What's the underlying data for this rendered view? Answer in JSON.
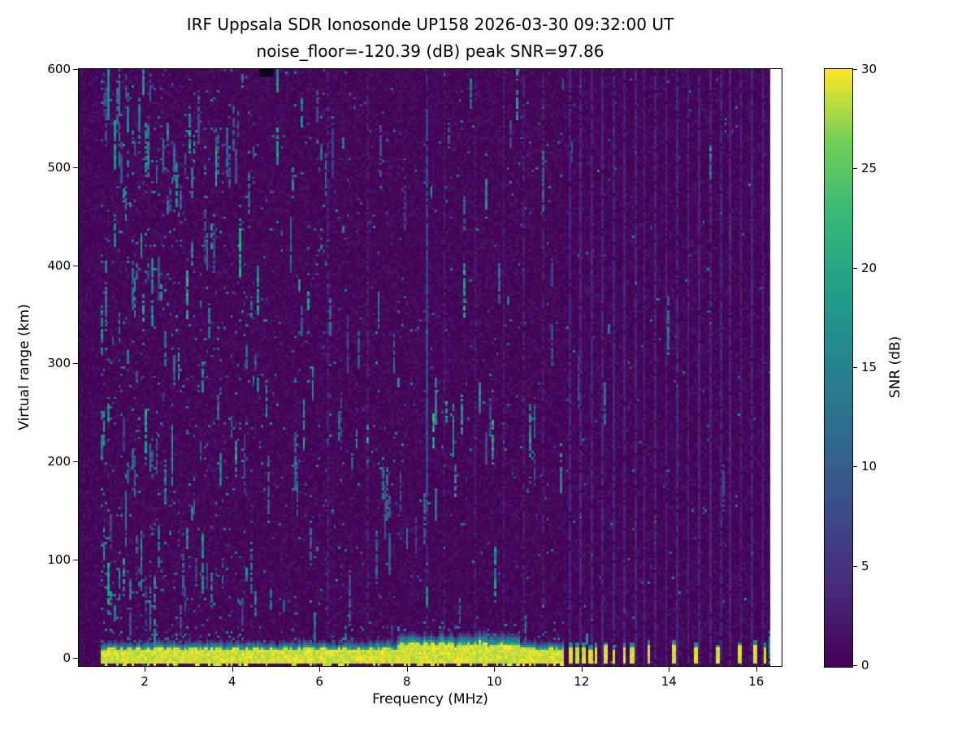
{
  "title": {
    "line1": "IRF Uppsala SDR Ionosonde UP158 2026-03-30 09:32:00  UT",
    "line2": "noise_floor=-120.39 (dB) peak SNR=97.86"
  },
  "axes": {
    "xlabel": "Frequency (MHz)",
    "ylabel": "Virtual range (km)",
    "x_ticks": [
      2,
      4,
      6,
      8,
      10,
      12,
      14,
      16
    ],
    "y_ticks": [
      0,
      100,
      200,
      300,
      400,
      500,
      600
    ],
    "xlim": [
      0.49,
      16.58
    ],
    "ylim": [
      -8.3,
      600
    ]
  },
  "colorbar": {
    "label": "SNR (dB)",
    "ticks": [
      0,
      5,
      10,
      15,
      20,
      25,
      30
    ],
    "min": 0,
    "max": 30,
    "viridis_stops": [
      "#440154",
      "#482878",
      "#3e4989",
      "#31688e",
      "#26828e",
      "#1f9e89",
      "#35b779",
      "#6ece58",
      "#fde725"
    ]
  },
  "chart_data": {
    "type": "heatmap",
    "title": "IRF Uppsala SDR Ionosonde UP158 2026-03-30 09:32:00  UT",
    "subtitle": "noise_floor=-120.39 (dB) peak SNR=97.86",
    "xlabel": "Frequency (MHz)",
    "ylabel": "Virtual range (km)",
    "value_label": "SNR (dB)",
    "value_range_db": [
      0,
      30
    ],
    "x_range_mhz": [
      1.0,
      16.32
    ],
    "y_range_km": [
      -8.3,
      600
    ],
    "noise_floor_db": -120.39,
    "peak_snr_db": 97.86,
    "features": {
      "ground_pulse_band": {
        "freq_mhz": [
          1.0,
          11.62
        ],
        "range_km": [
          -6,
          8
        ],
        "snr_db": 30
      },
      "band_thicker_region_mhz": [
        7.8,
        10.6
      ],
      "stepped_pulses_mhz": [
        11.72,
        11.86,
        12.0,
        12.14,
        12.3,
        12.5,
        12.72,
        12.95,
        13.1,
        13.52,
        14.05,
        14.55,
        15.05,
        15.55,
        15.95,
        16.2
      ],
      "rfi_stripe_region_mhz": [
        11.72,
        16.3
      ],
      "rfi_stripe_spacing_mhz": 0.245,
      "faint_stripes_mhz": [
        6.15,
        7.1,
        8.45,
        8.85,
        9.55,
        10.2,
        10.65,
        11.1
      ],
      "dark_patch": {
        "freq_mhz": [
          4.62,
          4.95
        ],
        "range_km": [
          592,
          600
        ]
      },
      "prominent_streaks": [
        [
          1.12,
          550,
          600,
          15
        ],
        [
          1.3,
          500,
          548,
          17
        ],
        [
          1.42,
          555,
          600,
          14
        ],
        [
          1.55,
          115,
          170,
          13
        ],
        [
          1.62,
          538,
          575,
          15
        ],
        [
          1.95,
          575,
          600,
          16
        ],
        [
          2.1,
          192,
          218,
          13
        ],
        [
          2.3,
          95,
          135,
          12
        ],
        [
          2.45,
          298,
          332,
          12
        ],
        [
          2.62,
          198,
          238,
          14
        ],
        [
          2.95,
          348,
          395,
          20
        ],
        [
          3.05,
          470,
          500,
          13
        ],
        [
          3.3,
          272,
          303,
          15
        ],
        [
          3.62,
          483,
          522,
          21
        ],
        [
          3.72,
          178,
          208,
          13
        ],
        [
          4.18,
          418,
          447,
          16
        ],
        [
          4.32,
          296,
          318,
          12
        ],
        [
          5.0,
          578,
          600,
          17
        ],
        [
          5.55,
          330,
          360,
          9
        ],
        [
          6.4,
          222,
          252,
          11
        ],
        [
          6.9,
          298,
          332,
          9
        ],
        [
          7.6,
          88,
          122,
          10
        ],
        [
          8.45,
          150,
          560,
          7
        ],
        [
          8.62,
          142,
          172,
          12
        ],
        [
          9.3,
          438,
          472,
          10
        ],
        [
          9.8,
          200,
          230,
          8
        ],
        [
          10.9,
          178,
          212,
          9
        ],
        [
          11.3,
          300,
          340,
          8
        ]
      ]
    },
    "render": {
      "seed": 42,
      "nx": 320,
      "ny": 255
    }
  }
}
